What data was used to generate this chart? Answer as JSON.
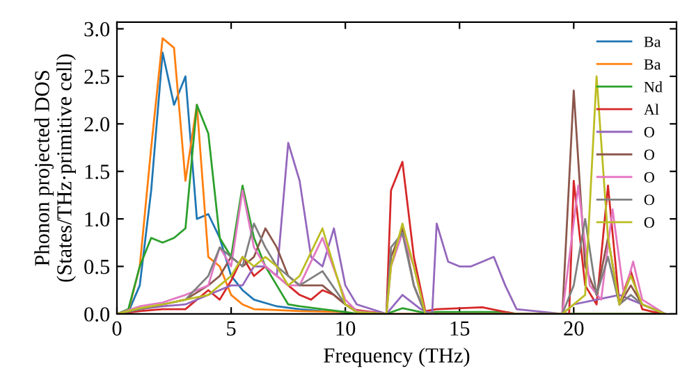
{
  "chart_data": {
    "type": "line",
    "xlabel": "Frequency (THz)",
    "ylabel": "Phonon projected DOS\n(States/THz·primitive cell)",
    "xlim": [
      0,
      24.5
    ],
    "ylim": [
      0,
      3.07
    ],
    "xticks": [
      0,
      5,
      10,
      15,
      20
    ],
    "yticks": [
      {
        "value": 0,
        "label": "0.0"
      },
      0.5,
      {
        "value": 1,
        "label": "1.0"
      },
      1.5,
      {
        "value": 2,
        "label": "2.0"
      },
      2.5,
      {
        "value": 3,
        "label": "3.0"
      }
    ],
    "grid": false,
    "legend": "top right",
    "marker": "none",
    "line_style": "solid",
    "series": [
      {
        "name": "Ba",
        "color": "#1f77b4",
        "x": [
          0,
          0.5,
          1,
          1.5,
          2,
          2.5,
          3,
          3.5,
          4,
          4.5,
          5,
          5.5,
          6,
          7,
          8,
          9,
          10
        ],
        "values": [
          0,
          0.02,
          0.3,
          1.3,
          2.75,
          2.2,
          2.5,
          1.0,
          1.05,
          0.8,
          0.4,
          0.25,
          0.15,
          0.08,
          0.05,
          0.03,
          0.02
        ]
      },
      {
        "name": "Ba",
        "color": "#ff7f0e",
        "x": [
          0,
          0.5,
          1,
          1.5,
          2,
          2.5,
          3,
          3.5,
          4,
          4.5,
          5,
          5.5,
          6,
          7,
          8,
          10,
          10.5,
          24
        ],
        "values": [
          0,
          0.03,
          0.5,
          1.75,
          2.9,
          2.8,
          1.4,
          2.2,
          0.6,
          0.5,
          0.2,
          0.1,
          0.05,
          0.04,
          0.03,
          0.02,
          0,
          0
        ]
      },
      {
        "name": "Nd",
        "color": "#2ca02c",
        "x": [
          0,
          0.5,
          1,
          1.5,
          2,
          2.5,
          3,
          3.5,
          4,
          4.5,
          5,
          5.5,
          6,
          6.5,
          7,
          7.5,
          8,
          9,
          10,
          10.5,
          11.8,
          12.5,
          13.5,
          14,
          17,
          17.5,
          24
        ],
        "values": [
          0,
          0.05,
          0.5,
          0.8,
          0.75,
          0.8,
          0.9,
          2.2,
          1.9,
          0.8,
          0.6,
          1.35,
          0.8,
          0.5,
          0.3,
          0.1,
          0.08,
          0.05,
          0.02,
          0,
          0,
          0.06,
          0.01,
          0.02,
          0.02,
          0,
          0
        ]
      },
      {
        "name": "Al",
        "color": "#d62728",
        "x": [
          0,
          1,
          2,
          3,
          3.5,
          4,
          4.5,
          5,
          5.5,
          6,
          6.5,
          7,
          7.5,
          8,
          8.5,
          9,
          9.5,
          10,
          10.5,
          11.8,
          12,
          12.5,
          13,
          13.5,
          14,
          16,
          17,
          17.5,
          19.8,
          20,
          20.5,
          21,
          21.5,
          22,
          22.5,
          23,
          23.5,
          24
        ],
        "values": [
          0,
          0.03,
          0.05,
          0.05,
          0.15,
          0.25,
          0.15,
          0.35,
          0.6,
          0.4,
          0.5,
          0.4,
          0.3,
          0.2,
          0.15,
          0.25,
          0.2,
          0.1,
          0.04,
          0,
          1.3,
          1.6,
          0.6,
          0.03,
          0.05,
          0.07,
          0.02,
          0,
          0,
          1.4,
          0.3,
          0.1,
          1.35,
          0.1,
          0.45,
          0.05,
          0.02,
          0
        ]
      },
      {
        "name": "O",
        "color": "#9467bd",
        "x": [
          0,
          1,
          2,
          3,
          4,
          5,
          5.5,
          6,
          6.5,
          7,
          7.5,
          8,
          8.5,
          9,
          9.5,
          10,
          10.5,
          11.8,
          12.5,
          13.3,
          13.8,
          14,
          14.5,
          15,
          15.5,
          16,
          16.5,
          17,
          17.5,
          19.5,
          20,
          21,
          22,
          22.5,
          23,
          24
        ],
        "values": [
          0,
          0.05,
          0.08,
          0.1,
          0.2,
          0.3,
          0.3,
          0.5,
          0.5,
          0.4,
          1.8,
          1.4,
          0.6,
          0.5,
          0.9,
          0.3,
          0.1,
          0,
          0.2,
          0.05,
          0,
          0.95,
          0.55,
          0.5,
          0.5,
          0.55,
          0.6,
          0.3,
          0.05,
          0,
          0.1,
          0.15,
          0.2,
          0.15,
          0.1,
          0
        ]
      },
      {
        "name": "O",
        "color": "#8c564b",
        "x": [
          0,
          1,
          2,
          3,
          4,
          4.5,
          5,
          5.5,
          6,
          6.5,
          7,
          7.5,
          8,
          9,
          10,
          10.5,
          11.8,
          12,
          12.5,
          13,
          13.5,
          19.5,
          20,
          20.5,
          21,
          21.5,
          22,
          22.5,
          23,
          24
        ],
        "values": [
          0,
          0.05,
          0.1,
          0.15,
          0.3,
          0.4,
          0.6,
          0.5,
          0.6,
          0.9,
          0.7,
          0.4,
          0.3,
          0.3,
          0.1,
          0.02,
          0,
          0.6,
          0.9,
          0.3,
          0,
          0,
          2.35,
          0.5,
          0.2,
          0.8,
          0.1,
          0.3,
          0.1,
          0
        ]
      },
      {
        "name": "O",
        "color": "#e377c2",
        "x": [
          0,
          1,
          2,
          3,
          4,
          4.5,
          5,
          5.5,
          6,
          6.5,
          7,
          7.5,
          8,
          9,
          10,
          10.5,
          11.8,
          12,
          12.5,
          13,
          13.5,
          19.5,
          20.2,
          20.7,
          21.2,
          21.7,
          22.2,
          22.6,
          23,
          24
        ],
        "values": [
          0,
          0.08,
          0.12,
          0.2,
          0.3,
          0.7,
          0.5,
          1.3,
          0.7,
          0.5,
          0.4,
          0.3,
          0.3,
          0.8,
          0.15,
          0.03,
          0,
          0.5,
          0.85,
          0.5,
          0,
          0,
          1.35,
          0.3,
          0.15,
          1.1,
          0.2,
          0.55,
          0.15,
          0
        ]
      },
      {
        "name": "O",
        "color": "#7f7f7f",
        "x": [
          0,
          1,
          2,
          3,
          4,
          4.5,
          5,
          5.5,
          6,
          6.5,
          7,
          7.5,
          8,
          9,
          10,
          10.5,
          11.8,
          12,
          12.5,
          13,
          13.5,
          19.5,
          20,
          20.5,
          21,
          21.5,
          22,
          22.5,
          23,
          24
        ],
        "values": [
          0,
          0.05,
          0.1,
          0.15,
          0.4,
          0.7,
          0.6,
          0.5,
          0.95,
          0.7,
          0.5,
          0.4,
          0.3,
          0.45,
          0.1,
          0.02,
          0,
          0.7,
          0.85,
          0.3,
          0,
          0,
          0.3,
          1.0,
          0.2,
          0.6,
          0.1,
          0.2,
          0.1,
          0
        ]
      },
      {
        "name": "O",
        "color": "#bcbd22",
        "x": [
          0,
          1,
          2,
          3,
          4,
          4.5,
          5,
          5.5,
          6,
          6.5,
          7,
          7.5,
          8,
          9,
          10,
          10.5,
          11.8,
          12,
          12.5,
          13,
          13.5,
          19.5,
          20.5,
          21,
          21.5,
          22,
          22.5,
          23,
          24
        ],
        "values": [
          0,
          0.06,
          0.1,
          0.15,
          0.2,
          0.3,
          0.4,
          0.6,
          0.5,
          0.6,
          0.5,
          0.3,
          0.4,
          0.9,
          0.1,
          0.02,
          0,
          0.5,
          0.95,
          0.5,
          0,
          0,
          0.2,
          2.5,
          0.8,
          0.1,
          0.4,
          0.1,
          0
        ]
      }
    ]
  }
}
